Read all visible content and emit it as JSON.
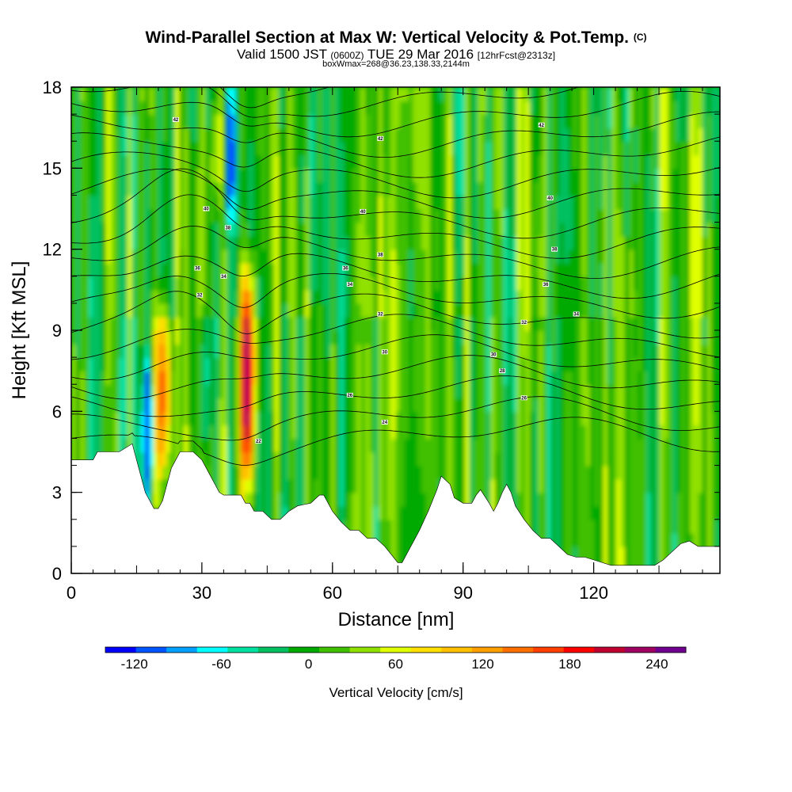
{
  "titles": {
    "main": "Wind-Parallel Section at Max W: Vertical Velocity & Pot.Temp.",
    "copyright": "(C)",
    "valid_prefix": "Valid 1500 JST",
    "valid_utc": "(0600Z)",
    "valid_date": "TUE 29 Mar 2016",
    "forecast": "[12hrFcst@2313z]",
    "boxmax": "boxWmax=268@36.23,138.33,2144m"
  },
  "colors": {
    "colorbar": [
      "#0000ff",
      "#0055ff",
      "#00a0ff",
      "#00ffff",
      "#00e0a0",
      "#00c060",
      "#00aa00",
      "#40c000",
      "#90e000",
      "#e0ff00",
      "#ffe000",
      "#ffc000",
      "#ffa000",
      "#ff7000",
      "#ff4000",
      "#ff0000",
      "#c00030",
      "#a00060",
      "#700090"
    ],
    "terrain": "#ffffff",
    "contour": "#000000"
  },
  "chart_data": {
    "type": "heatmap",
    "xlabel": "Distance [nm]",
    "ylabel": "Height [Kft MSL]",
    "xlim": [
      0,
      149
    ],
    "ylim": [
      0,
      18
    ],
    "xticks": [
      0,
      30,
      60,
      90,
      120
    ],
    "yticks": [
      0,
      3,
      6,
      9,
      12,
      15,
      18
    ],
    "colorbar": {
      "label": "Vertical Velocity [cm/s]",
      "ticks": [
        -120,
        -60,
        0,
        60,
        120,
        180,
        240
      ],
      "min": -140,
      "max": 260,
      "step": 20
    },
    "terrain_profile": {
      "x": [
        0,
        5,
        6,
        11,
        14,
        15,
        16,
        17,
        18,
        19,
        20,
        21,
        22,
        23,
        24,
        25,
        26,
        28,
        30,
        32,
        33,
        34,
        35,
        37,
        39,
        40,
        41,
        42,
        43,
        44,
        46,
        48,
        50,
        52,
        55,
        57,
        58,
        60,
        62,
        64,
        66,
        68,
        70,
        72,
        73,
        74,
        75,
        76,
        77,
        78,
        79,
        80,
        82,
        84,
        85,
        87,
        88,
        90,
        92,
        93,
        94,
        96,
        97,
        98,
        99,
        100,
        101,
        102,
        104,
        106,
        108,
        110,
        112,
        114,
        116,
        118,
        120,
        122,
        124,
        126,
        128,
        130,
        132,
        134,
        136,
        138,
        140,
        142,
        144,
        146,
        149
      ],
      "heights": [
        4.2,
        4.2,
        4.5,
        4.5,
        4.8,
        4.2,
        3.6,
        3.0,
        2.7,
        2.4,
        2.4,
        2.7,
        3.3,
        3.9,
        4.2,
        4.5,
        4.5,
        4.5,
        4.2,
        3.6,
        3.3,
        3.0,
        2.9,
        2.9,
        2.9,
        2.6,
        2.6,
        2.3,
        2.3,
        2.3,
        2.0,
        2.0,
        2.3,
        2.5,
        2.6,
        2.9,
        2.9,
        2.3,
        1.9,
        1.6,
        1.6,
        1.3,
        1.3,
        1.0,
        0.8,
        0.6,
        0.4,
        0.4,
        0.7,
        1.0,
        1.3,
        1.6,
        2.3,
        3.1,
        3.6,
        3.3,
        2.8,
        2.6,
        2.6,
        2.9,
        3.1,
        2.6,
        2.3,
        2.6,
        3.0,
        3.3,
        3.0,
        2.5,
        2.0,
        1.6,
        1.3,
        1.3,
        1.0,
        0.7,
        0.6,
        0.6,
        0.5,
        0.4,
        0.3,
        0.3,
        0.3,
        0.3,
        0.3,
        0.3,
        0.5,
        0.8,
        1.1,
        1.2,
        1.0,
        1.0,
        1.0
      ]
    },
    "updraft_cores": [
      {
        "x": 20.5,
        "z_min": 3.2,
        "z_max": 9.5,
        "w_max": 160
      },
      {
        "x": 40.0,
        "z_min": 3.0,
        "z_max": 11.0,
        "w_max": 240
      },
      {
        "x": 33.0,
        "z_min": 13.0,
        "z_max": 18.0,
        "w_max": 80
      }
    ],
    "downdraft_cores": [
      {
        "x": 17.0,
        "z_min": 2.8,
        "z_max": 7.5,
        "w_min": -120
      },
      {
        "x": 36.0,
        "z_min": 13.0,
        "z_max": 18.0,
        "w_min": -100
      },
      {
        "x": 30.0,
        "z_min": 4.5,
        "z_max": 9.0,
        "w_min": -50
      }
    ],
    "isentrope_labels": [
      {
        "x": 24.0,
        "z": 16.8,
        "text": "42"
      },
      {
        "x": 31.0,
        "z": 13.5,
        "text": "40"
      },
      {
        "x": 36.0,
        "z": 12.8,
        "text": "38"
      },
      {
        "x": 29.0,
        "z": 11.3,
        "text": "36"
      },
      {
        "x": 35.0,
        "z": 11.0,
        "text": "34"
      },
      {
        "x": 29.5,
        "z": 10.3,
        "text": "32"
      },
      {
        "x": 43.0,
        "z": 4.9,
        "text": "22"
      },
      {
        "x": 71.0,
        "z": 16.1,
        "text": "42"
      },
      {
        "x": 67.0,
        "z": 13.4,
        "text": "40"
      },
      {
        "x": 71.0,
        "z": 11.8,
        "text": "38"
      },
      {
        "x": 63.0,
        "z": 11.3,
        "text": "36"
      },
      {
        "x": 64.0,
        "z": 10.7,
        "text": "34"
      },
      {
        "x": 71.0,
        "z": 9.6,
        "text": "32"
      },
      {
        "x": 72.0,
        "z": 8.2,
        "text": "30"
      },
      {
        "x": 64.0,
        "z": 6.6,
        "text": "26"
      },
      {
        "x": 72.0,
        "z": 5.6,
        "text": "24"
      },
      {
        "x": 108.0,
        "z": 16.6,
        "text": "42"
      },
      {
        "x": 110.0,
        "z": 13.9,
        "text": "40"
      },
      {
        "x": 111.0,
        "z": 12.0,
        "text": "38"
      },
      {
        "x": 109.0,
        "z": 10.7,
        "text": "36"
      },
      {
        "x": 116.0,
        "z": 9.6,
        "text": "34"
      },
      {
        "x": 104.0,
        "z": 9.3,
        "text": "32"
      },
      {
        "x": 97.0,
        "z": 8.1,
        "text": "30"
      },
      {
        "x": 99.0,
        "z": 7.5,
        "text": "28"
      },
      {
        "x": 104.0,
        "z": 6.5,
        "text": "26"
      }
    ]
  }
}
